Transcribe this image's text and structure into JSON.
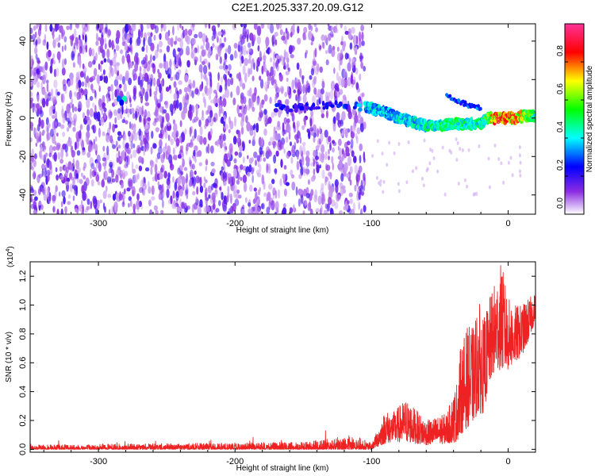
{
  "title": "C2E1.2025.337.20.09.G12",
  "chart_data": [
    {
      "type": "heatmap",
      "title": "C2E1.2025.337.20.09.G12",
      "xlabel": "Height of straight line (km)",
      "ylabel": "Frequency (Hz)",
      "xlim": [
        -350,
        20
      ],
      "ylim": [
        -50,
        49
      ],
      "xticks": [
        -300,
        -200,
        -100,
        0
      ],
      "xtick_labels": [
        "-300",
        "-200",
        "-100",
        "0"
      ],
      "yticks": [
        -40,
        -20,
        0,
        20,
        40
      ],
      "ytick_labels": [
        "-40",
        "-20",
        "0",
        "20",
        "40"
      ],
      "colorbar": {
        "label": "Normalized spectral amplitude",
        "range": [
          0,
          1
        ],
        "ticks": [
          0.0,
          0.2,
          0.4,
          0.6,
          0.8
        ],
        "tick_labels": [
          "0.0",
          "0.2",
          "0.4",
          "0.6",
          "0.8"
        ],
        "colors": [
          "#ffffff",
          "#8a2be2",
          "#0000ff",
          "#00ffff",
          "#00ff00",
          "#ffff00",
          "#ff0000",
          "#ff3399"
        ]
      },
      "noise_region": {
        "x_range": [
          -350,
          -105
        ],
        "freq_range": [
          -50,
          49
        ],
        "amplitude_range": [
          0.05,
          0.2
        ]
      },
      "signal_track": [
        {
          "x": -283,
          "freq": 10,
          "amp": 0.35
        },
        {
          "x": -160,
          "freq": 5,
          "amp": 0.25
        },
        {
          "x": -140,
          "freq": 6,
          "amp": 0.25
        },
        {
          "x": -120,
          "freq": 7,
          "amp": 0.3
        },
        {
          "x": -100,
          "freq": 5,
          "amp": 0.45
        },
        {
          "x": -90,
          "freq": 3,
          "amp": 0.4
        },
        {
          "x": -80,
          "freq": 0,
          "amp": 0.45
        },
        {
          "x": -70,
          "freq": -2,
          "amp": 0.45
        },
        {
          "x": -60,
          "freq": -4,
          "amp": 0.5
        },
        {
          "x": -50,
          "freq": -4,
          "amp": 0.5
        },
        {
          "x": -40,
          "freq": -3,
          "amp": 0.55
        },
        {
          "x": -30,
          "freq": -3,
          "amp": 0.5
        },
        {
          "x": -20,
          "freq": -3,
          "amp": 0.5
        },
        {
          "x": -15,
          "freq": 0,
          "amp": 0.6
        },
        {
          "x": -10,
          "freq": 0,
          "amp": 0.85
        },
        {
          "x": -5,
          "freq": 0,
          "amp": 0.9
        },
        {
          "x": 0,
          "freq": 0,
          "amp": 0.85
        },
        {
          "x": 5,
          "freq": 0,
          "amp": 0.9
        },
        {
          "x": 10,
          "freq": 1,
          "amp": 0.75
        },
        {
          "x": 15,
          "freq": 1,
          "amp": 0.6
        },
        {
          "x": 20,
          "freq": 1,
          "amp": 0.5
        }
      ],
      "secondary_track": [
        {
          "x": -45,
          "freq": 12,
          "amp": 0.3
        },
        {
          "x": -40,
          "freq": 10,
          "amp": 0.3
        },
        {
          "x": -30,
          "freq": 7,
          "amp": 0.3
        },
        {
          "x": -20,
          "freq": 5,
          "amp": 0.3
        }
      ]
    },
    {
      "type": "line",
      "xlabel": "Height of straight line (km)",
      "ylabel": "SNR (10 * v/v)",
      "scale_label": "(x10",
      "scale_exponent": "4",
      "scale_close": ")",
      "xlim": [
        -350,
        20
      ],
      "ylim": [
        -0.02,
        1.3
      ],
      "xticks": [
        -300,
        -200,
        -100,
        0
      ],
      "xtick_labels": [
        "-300",
        "-200",
        "-100",
        "0"
      ],
      "yticks": [
        0.0,
        0.2,
        0.4,
        0.6,
        0.8,
        1.0,
        1.2
      ],
      "ytick_labels": [
        "0.0",
        "0.2",
        "0.4",
        "0.6",
        "0.8",
        "1.0",
        "1.2"
      ],
      "color": "#ee2222",
      "series": [
        {
          "name": "SNR",
          "envelope": [
            {
              "x": -350,
              "low": 0.0,
              "high": 0.03
            },
            {
              "x": -250,
              "low": 0.0,
              "high": 0.04
            },
            {
              "x": -150,
              "low": 0.0,
              "high": 0.05
            },
            {
              "x": -112,
              "low": 0.0,
              "high": 0.1
            },
            {
              "x": -100,
              "low": 0.0,
              "high": 0.04
            },
            {
              "x": -95,
              "low": 0.02,
              "high": 0.15
            },
            {
              "x": -90,
              "low": 0.04,
              "high": 0.27
            },
            {
              "x": -85,
              "low": 0.05,
              "high": 0.25
            },
            {
              "x": -75,
              "low": 0.05,
              "high": 0.35
            },
            {
              "x": -60,
              "low": 0.03,
              "high": 0.2
            },
            {
              "x": -45,
              "low": 0.04,
              "high": 0.25
            },
            {
              "x": -38,
              "low": 0.05,
              "high": 0.45
            },
            {
              "x": -35,
              "low": 0.1,
              "high": 0.7
            },
            {
              "x": -30,
              "low": 0.15,
              "high": 0.85
            },
            {
              "x": -25,
              "low": 0.2,
              "high": 0.85
            },
            {
              "x": -22,
              "low": 0.25,
              "high": 1.05
            },
            {
              "x": -18,
              "low": 0.25,
              "high": 0.9
            },
            {
              "x": -15,
              "low": 0.4,
              "high": 1.0
            },
            {
              "x": -12,
              "low": 0.5,
              "high": 1.1
            },
            {
              "x": -8,
              "low": 0.55,
              "high": 1.2
            },
            {
              "x": -5,
              "low": 0.55,
              "high": 1.3
            },
            {
              "x": 0,
              "low": 0.55,
              "high": 1.05
            },
            {
              "x": 5,
              "low": 0.6,
              "high": 1.0
            },
            {
              "x": 10,
              "low": 0.65,
              "high": 1.0
            },
            {
              "x": 15,
              "low": 0.75,
              "high": 1.05
            },
            {
              "x": 20,
              "low": 0.9,
              "high": 1.08
            }
          ]
        }
      ]
    }
  ]
}
